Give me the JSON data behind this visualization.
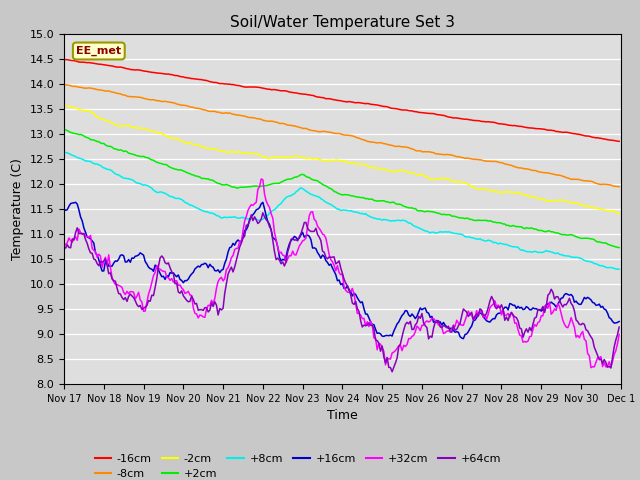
{
  "title": "Soil/Water Temperature Set 3",
  "xlabel": "Time",
  "ylabel": "Temperature (C)",
  "ylim": [
    8.0,
    15.0
  ],
  "yticks": [
    8.0,
    8.5,
    9.0,
    9.5,
    10.0,
    10.5,
    11.0,
    11.5,
    12.0,
    12.5,
    13.0,
    13.5,
    14.0,
    14.5,
    15.0
  ],
  "plot_bg_color": "#dedede",
  "fig_bg_color": "#c8c8c8",
  "legend_label": "EE_met",
  "series_colors": {
    "-16cm": "#ff0000",
    "-8cm": "#ff8800",
    "-2cm": "#ffff00",
    "+2cm": "#00ee00",
    "+8cm": "#00eeee",
    "+16cm": "#0000cc",
    "+32cm": "#ff00ff",
    "+64cm": "#8800bb"
  },
  "num_points": 336,
  "xtick_positions": [
    0,
    24,
    48,
    72,
    96,
    120,
    144,
    168,
    192,
    216,
    240,
    264,
    288,
    312,
    336
  ],
  "xtick_labels": [
    "Nov 17",
    "Nov 18",
    "Nov 19",
    "Nov 20",
    "Nov 21",
    "Nov 22",
    "Nov 23",
    "Nov 24",
    "Nov 25",
    "Nov 26",
    "Nov 27",
    "Nov 28",
    "Nov 29",
    "Nov 30",
    "Dec 1"
  ]
}
